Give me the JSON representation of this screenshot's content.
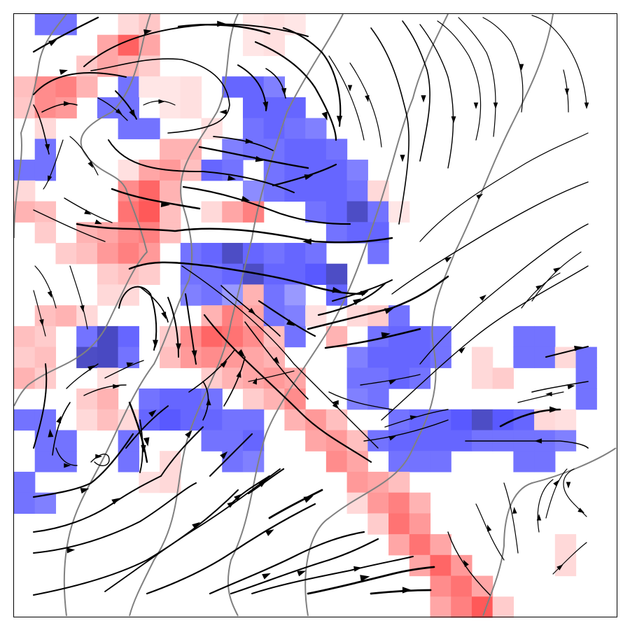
{
  "chart_data": {
    "type": "heatmap",
    "title": "",
    "xlabel": "",
    "ylabel": "",
    "xlim": [
      0,
      1
    ],
    "ylim": [
      0,
      1
    ],
    "axes_visible": false,
    "grid": false,
    "legend": "none",
    "colormap": "bwr",
    "colors": {
      "positive": "#ff0000",
      "negative": "#0000ff",
      "background": "#ffffff"
    },
    "heatmap_grid": {
      "rows": 29,
      "cols": 29
    },
    "layers": [
      "heatmap",
      "streamlines",
      "contour"
    ],
    "cells": [
      [
        0,
        1,
        -0.55
      ],
      [
        0,
        2,
        -0.55
      ],
      [
        0,
        5,
        0.15
      ],
      [
        0,
        6,
        0.22
      ],
      [
        0,
        11,
        0.1
      ],
      [
        0,
        12,
        0.12
      ],
      [
        0,
        13,
        0.1
      ],
      [
        1,
        4,
        0.35
      ],
      [
        1,
        5,
        0.62
      ],
      [
        1,
        6,
        0.35
      ],
      [
        1,
        11,
        0.1
      ],
      [
        1,
        12,
        0.12
      ],
      [
        2,
        3,
        0.22
      ],
      [
        2,
        4,
        0.35
      ],
      [
        2,
        5,
        0.3
      ],
      [
        2,
        6,
        0.2
      ],
      [
        3,
        0,
        0.25
      ],
      [
        3,
        1,
        0.45
      ],
      [
        3,
        2,
        0.5
      ],
      [
        3,
        3,
        0.3
      ],
      [
        3,
        5,
        -0.55
      ],
      [
        3,
        6,
        0.1
      ],
      [
        3,
        7,
        0.1
      ],
      [
        3,
        8,
        0.12
      ],
      [
        3,
        10,
        -0.6
      ],
      [
        3,
        11,
        -0.6
      ],
      [
        3,
        12,
        -0.5
      ],
      [
        4,
        0,
        0.22
      ],
      [
        4,
        1,
        0.45
      ],
      [
        4,
        2,
        0.4
      ],
      [
        4,
        4,
        -0.55
      ],
      [
        4,
        5,
        -0.55
      ],
      [
        4,
        7,
        0.1
      ],
      [
        4,
        8,
        0.12
      ],
      [
        4,
        11,
        -0.6
      ],
      [
        4,
        12,
        -0.6
      ],
      [
        4,
        13,
        -0.6
      ],
      [
        5,
        1,
        0.15
      ],
      [
        5,
        5,
        -0.55
      ],
      [
        5,
        6,
        -0.55
      ],
      [
        5,
        9,
        0.12
      ],
      [
        5,
        11,
        -0.55
      ],
      [
        5,
        12,
        -0.6
      ],
      [
        5,
        13,
        -0.55
      ],
      [
        5,
        14,
        -0.5
      ],
      [
        6,
        1,
        -0.55
      ],
      [
        6,
        7,
        0.3
      ],
      [
        6,
        8,
        0.3
      ],
      [
        6,
        10,
        -0.5
      ],
      [
        6,
        11,
        -0.55
      ],
      [
        6,
        12,
        -0.55
      ],
      [
        6,
        13,
        -0.6
      ],
      [
        6,
        14,
        -0.6
      ],
      [
        6,
        15,
        -0.55
      ],
      [
        7,
        0,
        -0.55
      ],
      [
        7,
        1,
        -0.55
      ],
      [
        7,
        5,
        0.12
      ],
      [
        7,
        6,
        0.35
      ],
      [
        7,
        7,
        0.4
      ],
      [
        7,
        8,
        0.25
      ],
      [
        7,
        9,
        -0.6
      ],
      [
        7,
        10,
        -0.55
      ],
      [
        7,
        12,
        -0.55
      ],
      [
        7,
        13,
        -0.6
      ],
      [
        7,
        14,
        -0.6
      ],
      [
        7,
        15,
        -0.6
      ],
      [
        7,
        16,
        -0.5
      ],
      [
        8,
        0,
        0.15
      ],
      [
        8,
        5,
        0.45
      ],
      [
        8,
        6,
        0.6
      ],
      [
        8,
        7,
        0.3
      ],
      [
        8,
        11,
        -0.45
      ],
      [
        8,
        12,
        -0.55
      ],
      [
        8,
        13,
        -0.6
      ],
      [
        8,
        14,
        -0.6
      ],
      [
        8,
        15,
        -0.6
      ],
      [
        8,
        16,
        -0.55
      ],
      [
        8,
        17,
        0.15
      ],
      [
        9,
        0,
        0.3
      ],
      [
        9,
        1,
        0.25
      ],
      [
        9,
        5,
        0.55
      ],
      [
        9,
        6,
        0.65
      ],
      [
        9,
        7,
        0.25
      ],
      [
        9,
        9,
        0.15
      ],
      [
        9,
        10,
        0.35
      ],
      [
        9,
        11,
        0.5
      ],
      [
        9,
        14,
        -0.55
      ],
      [
        9,
        15,
        -0.6
      ],
      [
        9,
        16,
        -0.7
      ],
      [
        9,
        17,
        -0.55
      ],
      [
        9,
        18,
        0.1
      ],
      [
        10,
        1,
        0.2
      ],
      [
        10,
        3,
        0.3
      ],
      [
        10,
        4,
        0.35
      ],
      [
        10,
        5,
        0.45
      ],
      [
        10,
        6,
        0.5
      ],
      [
        10,
        7,
        0.25
      ],
      [
        10,
        15,
        -0.55
      ],
      [
        10,
        16,
        -0.6
      ],
      [
        10,
        17,
        -0.6
      ],
      [
        11,
        2,
        0.2
      ],
      [
        11,
        3,
        0.25
      ],
      [
        11,
        4,
        0.4
      ],
      [
        11,
        5,
        0.5
      ],
      [
        11,
        6,
        0.4
      ],
      [
        11,
        8,
        -0.55
      ],
      [
        11,
        9,
        -0.6
      ],
      [
        11,
        10,
        -0.7
      ],
      [
        11,
        11,
        -0.6
      ],
      [
        11,
        12,
        -0.55
      ],
      [
        11,
        13,
        -0.6
      ],
      [
        11,
        14,
        -0.55
      ],
      [
        11,
        17,
        -0.55
      ],
      [
        12,
        4,
        0.2
      ],
      [
        12,
        5,
        0.25
      ],
      [
        12,
        6,
        0.2
      ],
      [
        12,
        8,
        -0.55
      ],
      [
        12,
        9,
        -0.55
      ],
      [
        12,
        10,
        -0.6
      ],
      [
        12,
        11,
        -0.7
      ],
      [
        12,
        12,
        -0.6
      ],
      [
        12,
        13,
        -0.6
      ],
      [
        12,
        14,
        -0.65
      ],
      [
        12,
        15,
        -0.7
      ],
      [
        13,
        4,
        0.15
      ],
      [
        13,
        5,
        0.15
      ],
      [
        13,
        8,
        -0.5
      ],
      [
        13,
        9,
        -0.55
      ],
      [
        13,
        10,
        -0.4
      ],
      [
        13,
        11,
        0.3
      ],
      [
        13,
        12,
        -0.55
      ],
      [
        13,
        13,
        -0.4
      ],
      [
        13,
        15,
        -0.6
      ],
      [
        14,
        1,
        0.25
      ],
      [
        14,
        2,
        0.3
      ],
      [
        14,
        3,
        0.15
      ],
      [
        14,
        9,
        0.3
      ],
      [
        14,
        10,
        0.5
      ],
      [
        14,
        11,
        0.35
      ],
      [
        14,
        12,
        -0.55
      ],
      [
        14,
        13,
        -0.5
      ],
      [
        14,
        14,
        0.12
      ],
      [
        14,
        16,
        0.15
      ],
      [
        14,
        17,
        0.2
      ],
      [
        14,
        18,
        -0.55
      ],
      [
        15,
        0,
        0.25
      ],
      [
        15,
        1,
        0.2
      ],
      [
        15,
        3,
        -0.55
      ],
      [
        15,
        4,
        -0.75
      ],
      [
        15,
        5,
        -0.6
      ],
      [
        15,
        7,
        0.2
      ],
      [
        15,
        8,
        0.45
      ],
      [
        15,
        9,
        0.6
      ],
      [
        15,
        10,
        0.55
      ],
      [
        15,
        11,
        0.45
      ],
      [
        15,
        12,
        0.25
      ],
      [
        15,
        13,
        -0.55
      ],
      [
        15,
        15,
        0.3
      ],
      [
        15,
        17,
        -0.55
      ],
      [
        15,
        18,
        -0.6
      ],
      [
        15,
        19,
        -0.6
      ],
      [
        15,
        20,
        -0.55
      ],
      [
        15,
        24,
        -0.55
      ],
      [
        15,
        25,
        -0.55
      ],
      [
        16,
        0,
        0.2
      ],
      [
        16,
        1,
        0.25
      ],
      [
        16,
        3,
        -0.7
      ],
      [
        16,
        4,
        -0.75
      ],
      [
        16,
        5,
        -0.55
      ],
      [
        16,
        7,
        0.25
      ],
      [
        16,
        8,
        0.4
      ],
      [
        16,
        9,
        0.45
      ],
      [
        16,
        10,
        0.4
      ],
      [
        16,
        11,
        0.35
      ],
      [
        16,
        12,
        0.3
      ],
      [
        16,
        16,
        -0.5
      ],
      [
        16,
        17,
        -0.6
      ],
      [
        16,
        18,
        -0.6
      ],
      [
        16,
        19,
        -0.6
      ],
      [
        16,
        20,
        -0.55
      ],
      [
        16,
        22,
        0.15
      ],
      [
        16,
        24,
        -0.55
      ],
      [
        16,
        25,
        -0.55
      ],
      [
        16,
        26,
        0.15
      ],
      [
        16,
        27,
        -0.55
      ],
      [
        17,
        0,
        0.3
      ],
      [
        17,
        1,
        0.2
      ],
      [
        17,
        4,
        0.12
      ],
      [
        17,
        9,
        0.2
      ],
      [
        17,
        10,
        0.3
      ],
      [
        17,
        11,
        0.35
      ],
      [
        17,
        12,
        0.4
      ],
      [
        17,
        13,
        0.35
      ],
      [
        17,
        16,
        -0.55
      ],
      [
        17,
        17,
        -0.55
      ],
      [
        17,
        18,
        -0.6
      ],
      [
        17,
        19,
        -0.55
      ],
      [
        17,
        22,
        0.15
      ],
      [
        17,
        23,
        0.2
      ],
      [
        17,
        27,
        -0.55
      ],
      [
        18,
        3,
        0.2
      ],
      [
        18,
        4,
        0.3
      ],
      [
        18,
        6,
        -0.55
      ],
      [
        18,
        7,
        -0.6
      ],
      [
        18,
        8,
        -0.6
      ],
      [
        18,
        9,
        -0.55
      ],
      [
        18,
        11,
        0.2
      ],
      [
        18,
        12,
        0.3
      ],
      [
        18,
        13,
        0.45
      ],
      [
        18,
        16,
        -0.5
      ],
      [
        18,
        17,
        -0.55
      ],
      [
        18,
        27,
        -0.55
      ],
      [
        19,
        0,
        -0.55
      ],
      [
        19,
        1,
        -0.55
      ],
      [
        19,
        3,
        0.15
      ],
      [
        19,
        4,
        0.25
      ],
      [
        19,
        5,
        0.15
      ],
      [
        19,
        6,
        -0.6
      ],
      [
        19,
        7,
        -0.65
      ],
      [
        19,
        8,
        -0.6
      ],
      [
        19,
        9,
        -0.6
      ],
      [
        19,
        10,
        -0.55
      ],
      [
        19,
        11,
        -0.55
      ],
      [
        19,
        13,
        0.3
      ],
      [
        19,
        14,
        0.4
      ],
      [
        19,
        15,
        0.25
      ],
      [
        19,
        18,
        -0.55
      ],
      [
        19,
        19,
        -0.6
      ],
      [
        19,
        20,
        -0.6
      ],
      [
        19,
        21,
        -0.65
      ],
      [
        19,
        22,
        -0.7
      ],
      [
        19,
        23,
        -0.65
      ],
      [
        19,
        24,
        -0.6
      ],
      [
        19,
        25,
        0.15
      ],
      [
        19,
        26,
        0.12
      ],
      [
        20,
        1,
        -0.55
      ],
      [
        20,
        2,
        -0.55
      ],
      [
        20,
        5,
        -0.55
      ],
      [
        20,
        9,
        -0.55
      ],
      [
        20,
        10,
        -0.55
      ],
      [
        20,
        11,
        -0.6
      ],
      [
        20,
        14,
        0.35
      ],
      [
        20,
        15,
        0.4
      ],
      [
        20,
        16,
        0.25
      ],
      [
        20,
        17,
        -0.55
      ],
      [
        20,
        18,
        -0.6
      ],
      [
        20,
        19,
        -0.6
      ],
      [
        20,
        20,
        -0.6
      ],
      [
        20,
        21,
        -0.6
      ],
      [
        20,
        22,
        -0.55
      ],
      [
        20,
        23,
        -0.55
      ],
      [
        20,
        24,
        -0.55
      ],
      [
        20,
        25,
        -0.55
      ],
      [
        20,
        26,
        -0.5
      ],
      [
        21,
        1,
        -0.55
      ],
      [
        21,
        2,
        -0.55
      ],
      [
        21,
        5,
        -0.55
      ],
      [
        21,
        7,
        0.15
      ],
      [
        21,
        10,
        -0.55
      ],
      [
        21,
        11,
        -0.5
      ],
      [
        21,
        15,
        0.45
      ],
      [
        21,
        16,
        0.35
      ],
      [
        21,
        18,
        -0.55
      ],
      [
        21,
        19,
        -0.55
      ],
      [
        21,
        20,
        -0.55
      ],
      [
        21,
        24,
        -0.55
      ],
      [
        21,
        25,
        -0.55
      ],
      [
        22,
        0,
        -0.55
      ],
      [
        22,
        6,
        0.12
      ],
      [
        22,
        7,
        0.15
      ],
      [
        22,
        16,
        0.4
      ],
      [
        22,
        17,
        0.35
      ],
      [
        22,
        18,
        0.25
      ],
      [
        23,
        0,
        -0.55
      ],
      [
        23,
        1,
        -0.5
      ],
      [
        23,
        16,
        0.15
      ],
      [
        23,
        17,
        0.4
      ],
      [
        23,
        18,
        0.5
      ],
      [
        23,
        19,
        0.3
      ],
      [
        24,
        17,
        0.2
      ],
      [
        24,
        18,
        0.55
      ],
      [
        24,
        19,
        0.4
      ],
      [
        25,
        18,
        0.35
      ],
      [
        25,
        19,
        0.55
      ],
      [
        25,
        20,
        0.35
      ],
      [
        25,
        26,
        0.15
      ],
      [
        26,
        19,
        0.35
      ],
      [
        26,
        20,
        0.6
      ],
      [
        26,
        21,
        0.4
      ],
      [
        26,
        26,
        0.15
      ],
      [
        27,
        20,
        0.45
      ],
      [
        27,
        21,
        0.55
      ],
      [
        27,
        22,
        0.35
      ],
      [
        28,
        20,
        0.35
      ],
      [
        28,
        21,
        0.5
      ],
      [
        28,
        22,
        0.65
      ],
      [
        28,
        23,
        0.2
      ]
    ]
  }
}
